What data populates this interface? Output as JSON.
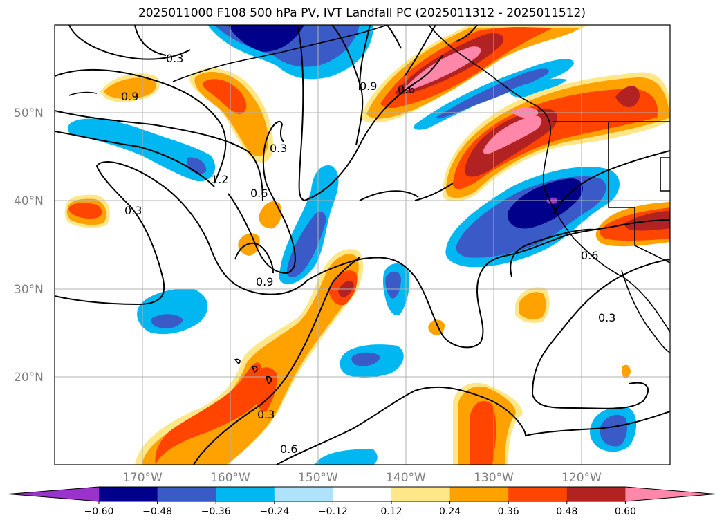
{
  "title": "2025011000 F108 500 hPa PV, IVT Landfall PC (2025011312 - 2025011512)",
  "map": {
    "lat_labels": [
      "50°N",
      "40°N",
      "30°N",
      "20°N"
    ],
    "lon_labels": [
      "170°W",
      "160°W",
      "150°W",
      "140°W",
      "130°W",
      "120°W"
    ],
    "contour_labels": [
      "0.3",
      "0.9",
      "0.3",
      "1.2",
      "0.6",
      "0.3",
      "0.9",
      "0.9",
      "0.6",
      "0.3",
      "0.6",
      "0.3",
      "0.6"
    ]
  },
  "colorbar": {
    "ticks": [
      "−0.60",
      "−0.48",
      "−0.36",
      "−0.24",
      "−0.12",
      "0.12",
      "0.24",
      "0.36",
      "0.48",
      "0.60"
    ],
    "colors": [
      "#9933cc",
      "#00008b",
      "#3a5bc7",
      "#00b7f2",
      "#aee3fb",
      "#ffffff",
      "#ffe787",
      "#ffa200",
      "#ff4500",
      "#b22222",
      "#ff88aa"
    ],
    "extend": "both"
  }
}
